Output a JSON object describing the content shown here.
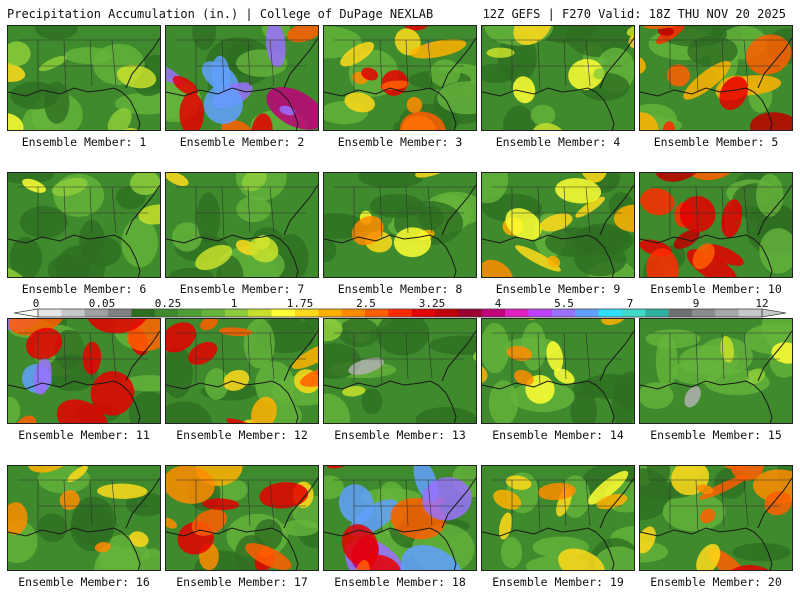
{
  "header": {
    "left": "Precipitation Accumulation (in.) | College of DuPage NEXLAB",
    "right": "12Z GEFS | F270 Valid: 18Z THU NOV 20 2025"
  },
  "caption_prefix": "Ensemble Member: ",
  "members": [
    {
      "n": "1",
      "level": 1
    },
    {
      "n": "2",
      "level": 5
    },
    {
      "n": "3",
      "level": 3
    },
    {
      "n": "4",
      "level": 1
    },
    {
      "n": "5",
      "level": 4
    },
    {
      "n": "6",
      "level": 0
    },
    {
      "n": "7",
      "level": 1
    },
    {
      "n": "8",
      "level": 2
    },
    {
      "n": "9",
      "level": 2
    },
    {
      "n": "10",
      "level": 4
    },
    {
      "n": "11",
      "level": 5
    },
    {
      "n": "12",
      "level": 3
    },
    {
      "n": "13",
      "level": 0
    },
    {
      "n": "14",
      "level": 2
    },
    {
      "n": "15",
      "level": 0
    },
    {
      "n": "16",
      "level": 2
    },
    {
      "n": "17",
      "level": 3
    },
    {
      "n": "18",
      "level": 5
    },
    {
      "n": "19",
      "level": 2
    },
    {
      "n": "20",
      "level": 3
    }
  ],
  "colorbar": {
    "labels": [
      "0",
      "0.05",
      "0.25",
      "1",
      "1.75",
      "2.5",
      "3.25",
      "4",
      "5.5",
      "7",
      "9",
      "12"
    ],
    "colors": [
      "#e6e6e6",
      "#c8c8c8",
      "#a0a0a0",
      "#808080",
      "#2e6e22",
      "#3e8a2c",
      "#4f9e35",
      "#66b43c",
      "#8ccc3a",
      "#c8e02c",
      "#ffff33",
      "#ffd91a",
      "#ffb000",
      "#ff8c00",
      "#ff5e00",
      "#ff2a00",
      "#e60000",
      "#c00000",
      "#9a0030",
      "#c0007a",
      "#e020c0",
      "#c040ff",
      "#9a70ff",
      "#60a0ff",
      "#30e0ff",
      "#40d8c8",
      "#30b0a0",
      "#707070",
      "#8c8c8c",
      "#a8a8a8",
      "#c8c8c8"
    ]
  }
}
